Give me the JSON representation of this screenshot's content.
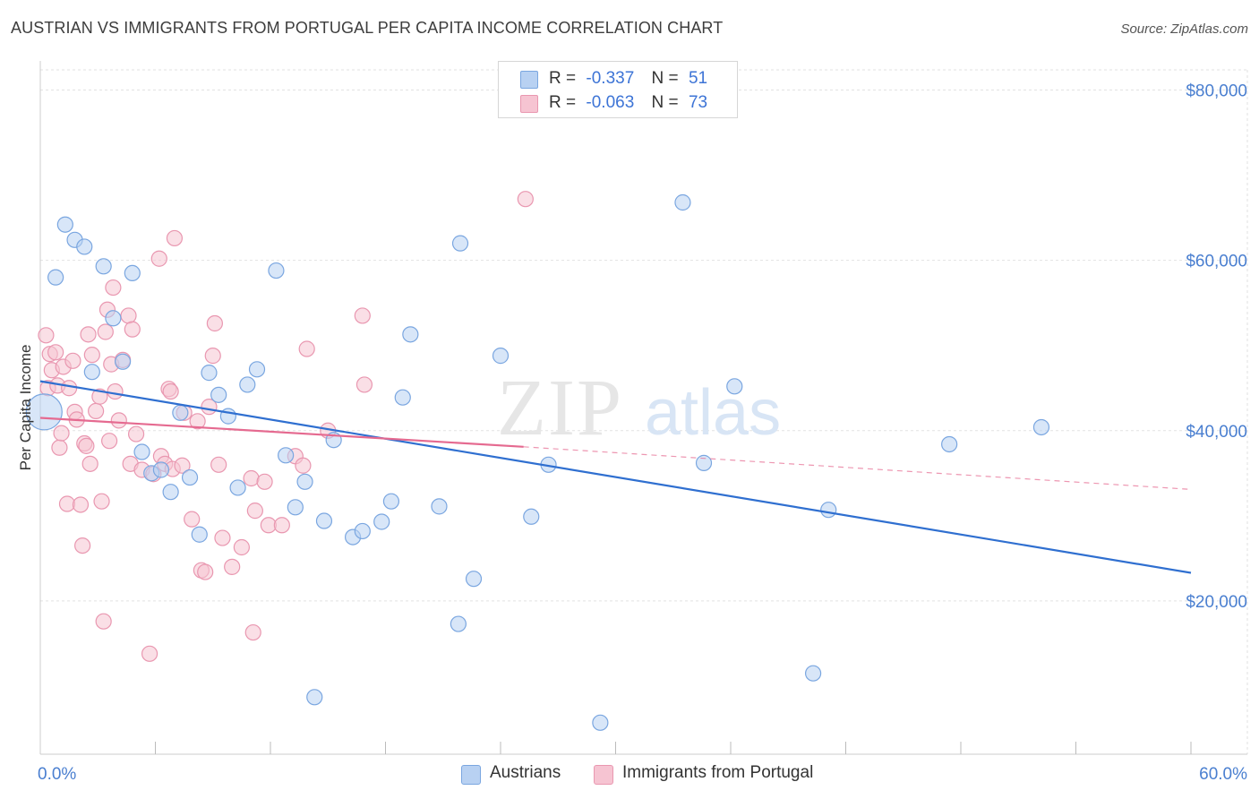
{
  "title": "AUSTRIAN VS IMMIGRANTS FROM PORTUGAL PER CAPITA INCOME CORRELATION CHART",
  "source": "Source: ZipAtlas.com",
  "legend": {
    "r_label": "R =",
    "n_label": "N =",
    "rows": [
      {
        "r": "-0.337",
        "n": "51"
      },
      {
        "r": "-0.063",
        "n": "73"
      }
    ]
  },
  "colors": {
    "blue_fill": "#b8d1f2",
    "blue_stroke": "#7aa6e0",
    "blue_line": "#2f6fd0",
    "pink_fill": "#f6c4d2",
    "pink_stroke": "#e997b0",
    "pink_line": "#e56a90",
    "axis_text": "#4a7fd0"
  },
  "chart_data": {
    "type": "scatter",
    "title": "AUSTRIAN VS IMMIGRANTS FROM PORTUGAL PER CAPITA INCOME CORRELATION CHART",
    "xlabel": "",
    "ylabel": "Per Capita Income",
    "xlim": [
      0,
      60
    ],
    "ylim": [
      2000,
      83000
    ],
    "x_tick_labels": [
      "0.0%",
      "60.0%"
    ],
    "y_ticks": [
      20000,
      40000,
      60000,
      80000
    ],
    "y_tick_labels": [
      "$20,000",
      "$40,000",
      "$60,000",
      "$80,000"
    ],
    "grid": true,
    "legend_position": "top-center",
    "watermark": "ZIPatlas",
    "series": [
      {
        "name": "Austrians",
        "r": -0.337,
        "n": 51,
        "trend": {
          "x": [
            0,
            60
          ],
          "y": [
            45800,
            23300
          ],
          "dashed_after": null
        },
        "points": [
          [
            0.2,
            42200
          ],
          [
            0.8,
            58000
          ],
          [
            1.3,
            64200
          ],
          [
            1.8,
            62400
          ],
          [
            2.3,
            61600
          ],
          [
            2.7,
            46900
          ],
          [
            3.3,
            59300
          ],
          [
            3.8,
            53200
          ],
          [
            4.3,
            48100
          ],
          [
            4.8,
            58500
          ],
          [
            5.3,
            37500
          ],
          [
            5.8,
            35000
          ],
          [
            6.3,
            35400
          ],
          [
            6.8,
            32800
          ],
          [
            7.3,
            42100
          ],
          [
            7.8,
            34500
          ],
          [
            8.3,
            27800
          ],
          [
            8.8,
            46800
          ],
          [
            9.3,
            44200
          ],
          [
            9.8,
            41700
          ],
          [
            10.3,
            33300
          ],
          [
            10.8,
            45400
          ],
          [
            11.3,
            47200
          ],
          [
            12.3,
            58800
          ],
          [
            12.8,
            37100
          ],
          [
            13.3,
            31000
          ],
          [
            13.8,
            34000
          ],
          [
            14.3,
            8700
          ],
          [
            14.8,
            29400
          ],
          [
            15.3,
            38900
          ],
          [
            16.3,
            27500
          ],
          [
            16.8,
            28200
          ],
          [
            17.8,
            29300
          ],
          [
            18.3,
            31700
          ],
          [
            18.9,
            43900
          ],
          [
            19.3,
            51300
          ],
          [
            20.8,
            31100
          ],
          [
            21.8,
            17300
          ],
          [
            21.9,
            62000
          ],
          [
            22.6,
            22600
          ],
          [
            24.0,
            48800
          ],
          [
            25.6,
            29900
          ],
          [
            26.5,
            36000
          ],
          [
            29.2,
            5700
          ],
          [
            33.5,
            66800
          ],
          [
            34.6,
            36200
          ],
          [
            36.2,
            45200
          ],
          [
            40.3,
            11500
          ],
          [
            41.1,
            30700
          ],
          [
            47.4,
            38400
          ],
          [
            52.2,
            40400
          ]
        ]
      },
      {
        "name": "Immigrants from Portugal",
        "r": -0.063,
        "n": 73,
        "trend": {
          "x": [
            0,
            25.2,
            60
          ],
          "y": [
            41500,
            38100,
            33100
          ],
          "dashed_after": 25.2
        },
        "points": [
          [
            0.3,
            51200
          ],
          [
            0.4,
            45000
          ],
          [
            0.5,
            49000
          ],
          [
            0.6,
            47100
          ],
          [
            0.8,
            49200
          ],
          [
            0.9,
            45300
          ],
          [
            1.0,
            38000
          ],
          [
            1.1,
            39700
          ],
          [
            1.2,
            47500
          ],
          [
            1.4,
            31400
          ],
          [
            1.5,
            45000
          ],
          [
            1.7,
            48200
          ],
          [
            1.8,
            42200
          ],
          [
            1.9,
            41300
          ],
          [
            2.1,
            31300
          ],
          [
            2.2,
            26500
          ],
          [
            2.3,
            38500
          ],
          [
            2.4,
            38200
          ],
          [
            2.5,
            51300
          ],
          [
            2.6,
            36100
          ],
          [
            2.7,
            48900
          ],
          [
            2.9,
            42300
          ],
          [
            3.1,
            44000
          ],
          [
            3.2,
            31700
          ],
          [
            3.3,
            17600
          ],
          [
            3.4,
            51600
          ],
          [
            3.5,
            54200
          ],
          [
            3.6,
            38800
          ],
          [
            3.7,
            47800
          ],
          [
            3.8,
            56800
          ],
          [
            3.9,
            44600
          ],
          [
            4.1,
            41200
          ],
          [
            4.3,
            48300
          ],
          [
            4.6,
            53500
          ],
          [
            4.7,
            36100
          ],
          [
            4.8,
            51900
          ],
          [
            5.0,
            39600
          ],
          [
            5.3,
            35400
          ],
          [
            5.7,
            13800
          ],
          [
            5.9,
            34900
          ],
          [
            6.2,
            60200
          ],
          [
            6.3,
            37000
          ],
          [
            6.5,
            36100
          ],
          [
            6.7,
            44900
          ],
          [
            6.8,
            44600
          ],
          [
            6.9,
            35500
          ],
          [
            7.0,
            62600
          ],
          [
            7.4,
            35900
          ],
          [
            7.5,
            42100
          ],
          [
            7.9,
            29600
          ],
          [
            8.2,
            41100
          ],
          [
            8.4,
            23600
          ],
          [
            8.6,
            23400
          ],
          [
            8.8,
            42800
          ],
          [
            9.0,
            48800
          ],
          [
            9.1,
            52600
          ],
          [
            9.3,
            36000
          ],
          [
            9.5,
            27400
          ],
          [
            10.0,
            24000
          ],
          [
            10.5,
            26300
          ],
          [
            11.0,
            34400
          ],
          [
            11.1,
            16300
          ],
          [
            11.2,
            30600
          ],
          [
            11.7,
            34000
          ],
          [
            11.9,
            28900
          ],
          [
            12.6,
            28900
          ],
          [
            13.3,
            37000
          ],
          [
            13.7,
            35900
          ],
          [
            13.9,
            49600
          ],
          [
            15.0,
            40000
          ],
          [
            16.8,
            53500
          ],
          [
            16.9,
            45400
          ],
          [
            25.3,
            67200
          ]
        ]
      }
    ]
  }
}
